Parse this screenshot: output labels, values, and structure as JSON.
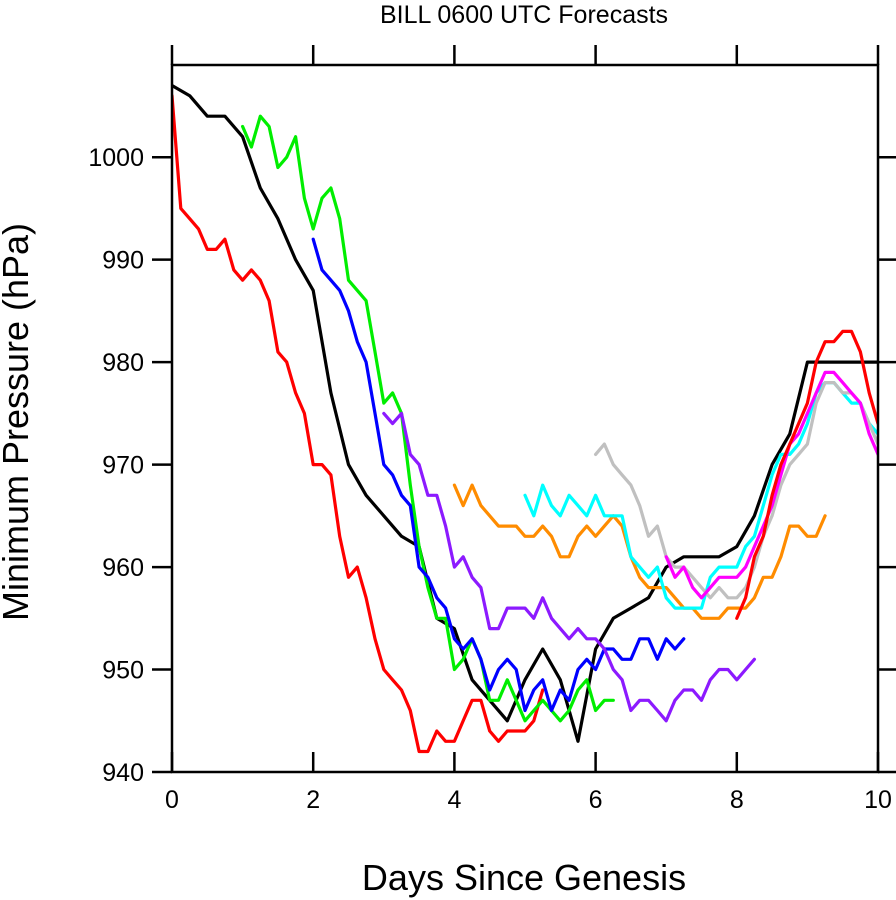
{
  "chart_data": {
    "type": "line",
    "title": "BILL 0600 UTC Forecasts",
    "xlabel": "Days Since Genesis",
    "ylabel": "Minimum Pressure (hPa)",
    "xlim": [
      0,
      10
    ],
    "ylim": [
      940,
      1009
    ],
    "xticks": [
      0,
      2,
      4,
      6,
      8,
      10
    ],
    "xtick_labels": [
      "0",
      "2",
      "4",
      "6",
      "8",
      "10"
    ],
    "yticks": [
      940,
      950,
      960,
      970,
      980,
      990,
      1000
    ],
    "ytick_labels": [
      "940",
      "950",
      "960",
      "970",
      "980",
      "990",
      "1000"
    ],
    "grid": false,
    "legend": "none",
    "series": [
      {
        "color": "#000000",
        "x": [
          0,
          0.25,
          0.5,
          0.75,
          1,
          1.25,
          1.5,
          1.75,
          2,
          2.25,
          2.5,
          2.75,
          3,
          3.25,
          3.5,
          3.75,
          4,
          4.25,
          4.5,
          4.75,
          5,
          5.25,
          5.5,
          5.75,
          6,
          6.25,
          6.5,
          6.75,
          7,
          7.25,
          7.5,
          7.75,
          8,
          8.25,
          8.5,
          8.75,
          9,
          9.25,
          9.5,
          9.75,
          10
        ],
        "y": [
          1007,
          1006,
          1004,
          1004,
          1002,
          997,
          994,
          990,
          987,
          977,
          970,
          967,
          965,
          963,
          962,
          955,
          954,
          949,
          947,
          945,
          949,
          952,
          949,
          943,
          952,
          955,
          956,
          957,
          960,
          961,
          961,
          961,
          962,
          965,
          970,
          973,
          980,
          980,
          980,
          980,
          980
        ]
      },
      {
        "color": "#ff0000",
        "x": [
          0,
          0.125,
          0.25,
          0.375,
          0.5,
          0.625,
          0.75,
          0.875,
          1,
          1.125,
          1.25,
          1.375,
          1.5,
          1.625,
          1.75,
          1.875,
          2,
          2.125,
          2.25,
          2.375,
          2.5,
          2.625,
          2.75,
          2.875,
          3,
          3.125,
          3.25,
          3.375,
          3.5,
          3.625,
          3.75,
          3.875,
          4,
          4.125,
          4.25,
          4.375,
          4.5,
          4.625,
          4.75,
          4.875,
          5,
          5.125,
          5.25
        ],
        "y": [
          1006,
          995,
          994,
          993,
          991,
          991,
          992,
          989,
          988,
          989,
          988,
          986,
          981,
          980,
          977,
          975,
          970,
          970,
          969,
          963,
          959,
          960,
          957,
          953,
          950,
          949,
          948,
          946,
          942,
          942,
          944,
          943,
          943,
          945,
          947,
          947,
          944,
          943,
          944,
          944,
          944,
          945,
          948
        ]
      },
      {
        "color": "#00ee00",
        "x": [
          1,
          1.125,
          1.25,
          1.375,
          1.5,
          1.625,
          1.75,
          1.875,
          2,
          2.125,
          2.25,
          2.375,
          2.5,
          2.625,
          2.75,
          2.875,
          3,
          3.125,
          3.25,
          3.375,
          3.5,
          3.625,
          3.75,
          3.875,
          4,
          4.125,
          4.25,
          4.375,
          4.5,
          4.625,
          4.75,
          4.875,
          5,
          5.125,
          5.25,
          5.375,
          5.5,
          5.625,
          5.75,
          5.875,
          6,
          6.125,
          6.25
        ],
        "y": [
          1003,
          1001,
          1004,
          1003,
          999,
          1000,
          1002,
          996,
          993,
          996,
          997,
          994,
          988,
          987,
          986,
          981,
          976,
          977,
          975,
          968,
          962,
          958,
          955,
          955,
          950,
          951,
          953,
          951,
          947,
          947,
          949,
          947,
          945,
          946,
          947,
          946,
          945,
          946,
          948,
          949,
          946,
          947,
          947
        ]
      },
      {
        "color": "#0000ff",
        "x": [
          2,
          2.125,
          2.25,
          2.375,
          2.5,
          2.625,
          2.75,
          2.875,
          3,
          3.125,
          3.25,
          3.375,
          3.5,
          3.625,
          3.75,
          3.875,
          4,
          4.125,
          4.25,
          4.375,
          4.5,
          4.625,
          4.75,
          4.875,
          5,
          5.125,
          5.25,
          5.375,
          5.5,
          5.625,
          5.75,
          5.875,
          6,
          6.125,
          6.25,
          6.375,
          6.5,
          6.625,
          6.75,
          6.875,
          7,
          7.125,
          7.25
        ],
        "y": [
          992,
          989,
          988,
          987,
          985,
          982,
          980,
          975,
          970,
          969,
          967,
          966,
          960,
          959,
          957,
          956,
          953,
          952,
          953,
          951,
          948,
          950,
          951,
          950,
          946,
          948,
          949,
          946,
          948,
          947,
          950,
          951,
          950,
          952,
          952,
          951,
          951,
          953,
          953,
          951,
          953,
          952,
          953
        ]
      },
      {
        "color": "#8c1aff",
        "x": [
          3,
          3.125,
          3.25,
          3.375,
          3.5,
          3.625,
          3.75,
          3.875,
          4,
          4.125,
          4.25,
          4.375,
          4.5,
          4.625,
          4.75,
          4.875,
          5,
          5.125,
          5.25,
          5.375,
          5.5,
          5.625,
          5.75,
          5.875,
          6,
          6.125,
          6.25,
          6.375,
          6.5,
          6.625,
          6.75,
          6.875,
          7,
          7.125,
          7.25,
          7.375,
          7.5,
          7.625,
          7.75,
          7.875,
          8,
          8.125,
          8.25
        ],
        "y": [
          975,
          974,
          975,
          971,
          970,
          967,
          967,
          964,
          960,
          961,
          959,
          958,
          954,
          954,
          956,
          956,
          956,
          955,
          957,
          955,
          954,
          953,
          954,
          953,
          953,
          952,
          950,
          949,
          946,
          947,
          947,
          946,
          945,
          947,
          948,
          948,
          947,
          949,
          950,
          950,
          949,
          950,
          951
        ]
      },
      {
        "color": "#ff8c00",
        "x": [
          4,
          4.125,
          4.25,
          4.375,
          4.5,
          4.625,
          4.75,
          4.875,
          5,
          5.125,
          5.25,
          5.375,
          5.5,
          5.625,
          5.75,
          5.875,
          6,
          6.125,
          6.25,
          6.375,
          6.5,
          6.625,
          6.75,
          6.875,
          7,
          7.125,
          7.25,
          7.375,
          7.5,
          7.625,
          7.75,
          7.875,
          8,
          8.125,
          8.25,
          8.375,
          8.5,
          8.625,
          8.75,
          8.875,
          9,
          9.125,
          9.25
        ],
        "y": [
          968,
          966,
          968,
          966,
          965,
          964,
          964,
          964,
          963,
          963,
          964,
          963,
          961,
          961,
          963,
          964,
          963,
          964,
          965,
          964,
          961,
          959,
          958,
          958,
          958,
          957,
          956,
          956,
          955,
          955,
          955,
          956,
          956,
          956,
          957,
          959,
          959,
          961,
          964,
          964,
          963,
          963,
          965
        ]
      },
      {
        "color": "#00ffff",
        "x": [
          5,
          5.125,
          5.25,
          5.375,
          5.5,
          5.625,
          5.75,
          5.875,
          6,
          6.125,
          6.25,
          6.375,
          6.5,
          6.625,
          6.75,
          6.875,
          7,
          7.125,
          7.25,
          7.375,
          7.5,
          7.625,
          7.75,
          7.875,
          8,
          8.125,
          8.25,
          8.375,
          8.5,
          8.625,
          8.75,
          8.875,
          9,
          9.125,
          9.25,
          9.375,
          9.5,
          9.625,
          9.75,
          9.875,
          10
        ],
        "y": [
          967,
          965,
          968,
          966,
          965,
          967,
          966,
          965,
          967,
          965,
          965,
          965,
          961,
          960,
          959,
          960,
          957,
          956,
          956,
          956,
          956,
          959,
          960,
          960,
          960,
          962,
          963,
          966,
          969,
          971,
          971,
          972,
          974,
          977,
          978,
          978,
          977,
          976,
          976,
          974,
          973
        ]
      },
      {
        "color": "#c0c0c0",
        "x": [
          6,
          6.125,
          6.25,
          6.375,
          6.5,
          6.625,
          6.75,
          6.875,
          7,
          7.125,
          7.25,
          7.375,
          7.5,
          7.625,
          7.75,
          7.875,
          8,
          8.125,
          8.25,
          8.375,
          8.5,
          8.625,
          8.75,
          8.875,
          9,
          9.125,
          9.25,
          9.375,
          9.5,
          9.625,
          9.75,
          9.875,
          10
        ],
        "y": [
          971,
          972,
          970,
          969,
          968,
          966,
          963,
          964,
          961,
          960,
          960,
          959,
          958,
          957,
          958,
          957,
          957,
          958,
          960,
          963,
          965,
          968,
          970,
          971,
          972,
          976,
          978,
          978,
          977,
          977,
          976,
          974,
          972
        ]
      },
      {
        "color": "#ff00ff",
        "x": [
          7,
          7.125,
          7.25,
          7.375,
          7.5,
          7.625,
          7.75,
          7.875,
          8,
          8.125,
          8.25,
          8.375,
          8.5,
          8.625,
          8.75,
          8.875,
          9,
          9.125,
          9.25,
          9.375,
          9.5,
          9.625,
          9.75,
          9.875,
          10
        ],
        "y": [
          961,
          959,
          960,
          958,
          957,
          958,
          959,
          959,
          959,
          960,
          962,
          964,
          966,
          969,
          972,
          973,
          975,
          977,
          979,
          979,
          978,
          977,
          976,
          973,
          971
        ]
      },
      {
        "color": "#ff0000",
        "x": [
          8,
          8.125,
          8.25,
          8.375,
          8.5,
          8.625,
          8.75,
          8.875,
          9,
          9.125,
          9.25,
          9.375,
          9.5,
          9.625,
          9.75,
          9.875,
          10
        ],
        "y": [
          955,
          957,
          961,
          963,
          967,
          970,
          972,
          974,
          976,
          980,
          982,
          982,
          983,
          983,
          981,
          977,
          974
        ]
      }
    ]
  }
}
